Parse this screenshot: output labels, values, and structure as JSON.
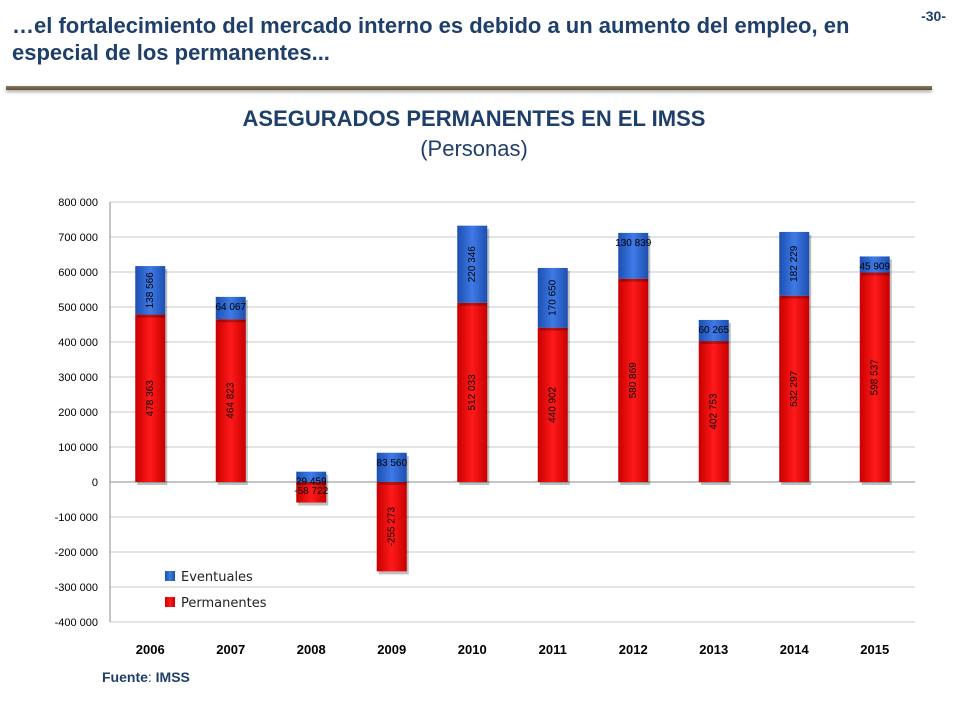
{
  "header": {
    "headline": "…el fortalecimiento del mercado interno es debido a un aumento del empleo, en especial de los permanentes...",
    "page_number": "-30-"
  },
  "source": {
    "label": "Fuente",
    "value": "IMSS"
  },
  "colors": {
    "eventuales": "#2a64d2",
    "permanentes": "#ff0000",
    "title": "#1f3f6b"
  },
  "chart_data": {
    "type": "bar",
    "stacked": true,
    "title": "ASEGURADOS PERMANENTES EN EL IMSS",
    "subtitle": "(Personas)",
    "categories": [
      "2006",
      "2007",
      "2008",
      "2009",
      "2010",
      "2011",
      "2012",
      "2013",
      "2014",
      "2015"
    ],
    "series": [
      {
        "name": "Permanentes",
        "values": [
          478363,
          464823,
          -58722,
          -255273,
          512033,
          440902,
          580869,
          402753,
          532297,
          598537
        ],
        "labels": [
          "478 363",
          "464 823",
          "-58 722",
          "-255 273",
          "512 033",
          "440 902",
          "580 869",
          "402 753",
          "532 297",
          "598 537"
        ]
      },
      {
        "name": "Eventuales",
        "values": [
          138566,
          64067,
          29459,
          83560,
          220346,
          170650,
          130839,
          60265,
          182229,
          45909
        ],
        "labels": [
          "138 566",
          "64 067",
          "29 459",
          "83 560",
          "220 346",
          "170 650",
          "130 839",
          "60 265",
          "182 229",
          "45 909"
        ]
      }
    ],
    "ylim": [
      -400000,
      800000
    ],
    "yticks": [
      800000,
      700000,
      600000,
      500000,
      400000,
      300000,
      200000,
      100000,
      0,
      -100000,
      -200000,
      -300000,
      -400000
    ],
    "ytick_labels": [
      "800 000",
      "700 000",
      "600 000",
      "500 000",
      "400 000",
      "300 000",
      "200 000",
      "100 000",
      "0",
      "-100 000",
      "-200 000",
      "-300 000",
      "-400 000"
    ],
    "grid": true,
    "legend": "bottom-left",
    "legend_order": [
      "Eventuales",
      "Permanentes"
    ]
  }
}
